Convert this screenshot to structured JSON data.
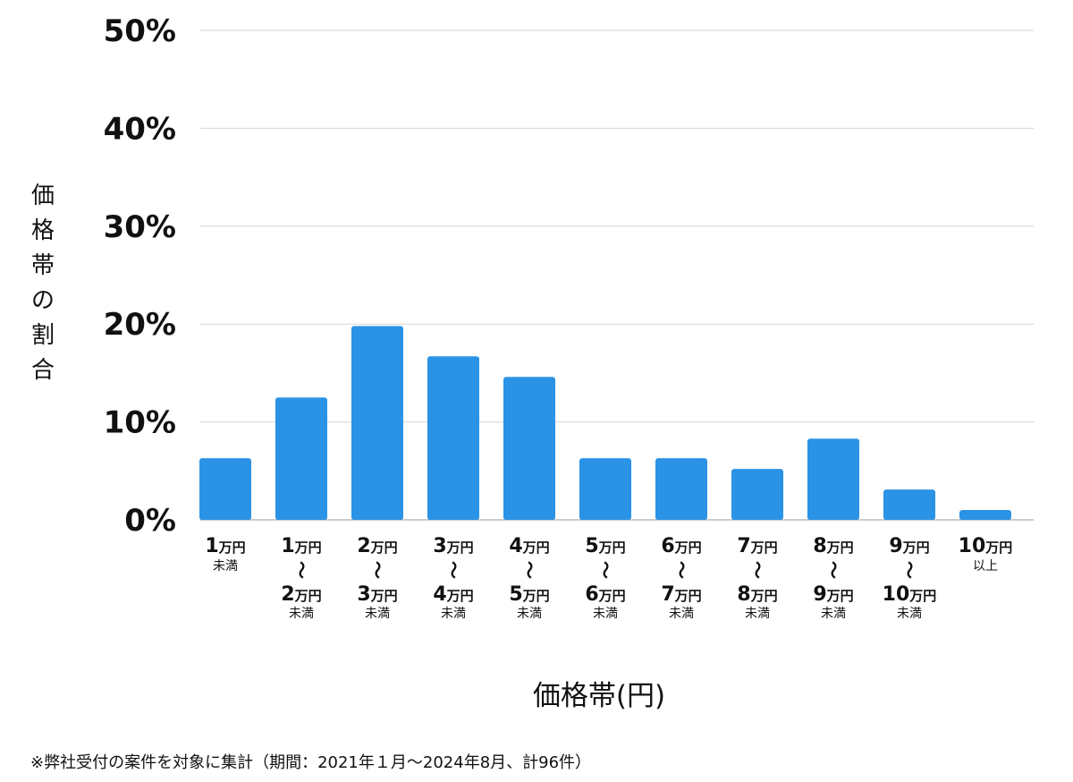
{
  "chart_data": {
    "type": "bar",
    "ylabel": "価格帯の割合",
    "xlabel": "価格帯(円)",
    "ylim": [
      0,
      50
    ],
    "yticks": [
      0,
      10,
      20,
      30,
      40,
      50
    ],
    "ytick_labels": [
      "0%",
      "10%",
      "20%",
      "30%",
      "40%",
      "50%"
    ],
    "grid": true,
    "bar_color": "#2B93E6",
    "categories": [
      {
        "top": "1",
        "unit": "万円",
        "bottom": null,
        "note": "未満"
      },
      {
        "top": "1",
        "unit": "万円",
        "bottom": "2",
        "note": "未満"
      },
      {
        "top": "2",
        "unit": "万円",
        "bottom": "3",
        "note": "未満"
      },
      {
        "top": "3",
        "unit": "万円",
        "bottom": "4",
        "note": "未満"
      },
      {
        "top": "4",
        "unit": "万円",
        "bottom": "5",
        "note": "未満"
      },
      {
        "top": "5",
        "unit": "万円",
        "bottom": "6",
        "note": "未満"
      },
      {
        "top": "6",
        "unit": "万円",
        "bottom": "7",
        "note": "未満"
      },
      {
        "top": "7",
        "unit": "万円",
        "bottom": "8",
        "note": "未満"
      },
      {
        "top": "8",
        "unit": "万円",
        "bottom": "9",
        "note": "未満"
      },
      {
        "top": "9",
        "unit": "万円",
        "bottom": "10",
        "note": "未満"
      },
      {
        "top": "10",
        "unit": "万円",
        "bottom": null,
        "note": "以上"
      }
    ],
    "range_symbol": "〜",
    "values": [
      6.3,
      12.5,
      19.8,
      16.7,
      14.6,
      6.3,
      6.3,
      5.2,
      8.3,
      3.1,
      1.0
    ]
  },
  "footnote": "※弊社受付の案件を対象に集計（期間：2021年１月〜2024年8月、計96件）"
}
